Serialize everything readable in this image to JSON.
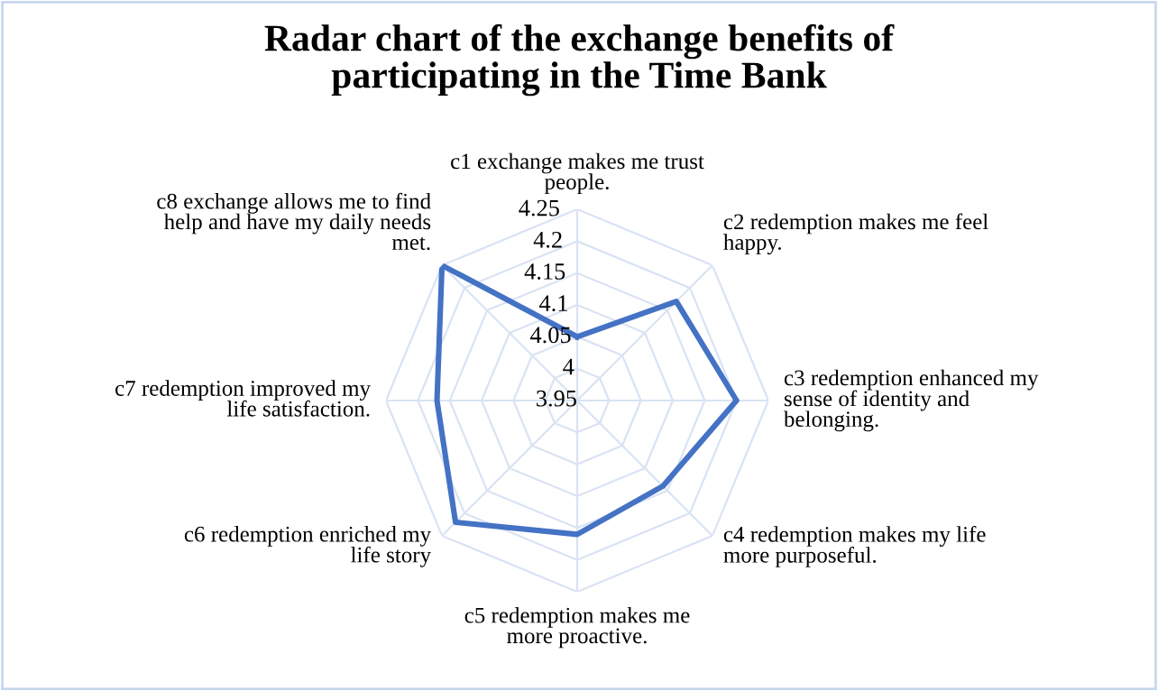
{
  "chart_data": {
    "type": "radar",
    "title": "Radar chart of the exchange benefits of\nparticipating in the Time Bank",
    "categories": [
      "c1 exchange makes me trust\npeople.",
      "c2 redemption makes me feel\nhappy.",
      "c3 redemption enhanced my\nsense of identity and\nbelonging.",
      "c4 redemption makes my life\nmore purposeful.",
      "c5 redemption makes me\nmore proactive.",
      "c6 redemption enriched my\nlife story",
      "c7 redemption improved my\nlife satisfaction.",
      "c8 exchange allows me to find\nhelp and have my daily needs\nmet."
    ],
    "series": [
      {
        "color": "#4472c4",
        "values": [
          4.05,
          4.17,
          4.2,
          4.14,
          4.16,
          4.22,
          4.17,
          4.25
        ]
      }
    ],
    "ylim": [
      3.95,
      4.25
    ],
    "yticks": [
      3.95,
      4,
      4.05,
      4.1,
      4.15,
      4.2,
      4.25
    ],
    "grid": true,
    "marker": "none",
    "line_style": "solid"
  }
}
